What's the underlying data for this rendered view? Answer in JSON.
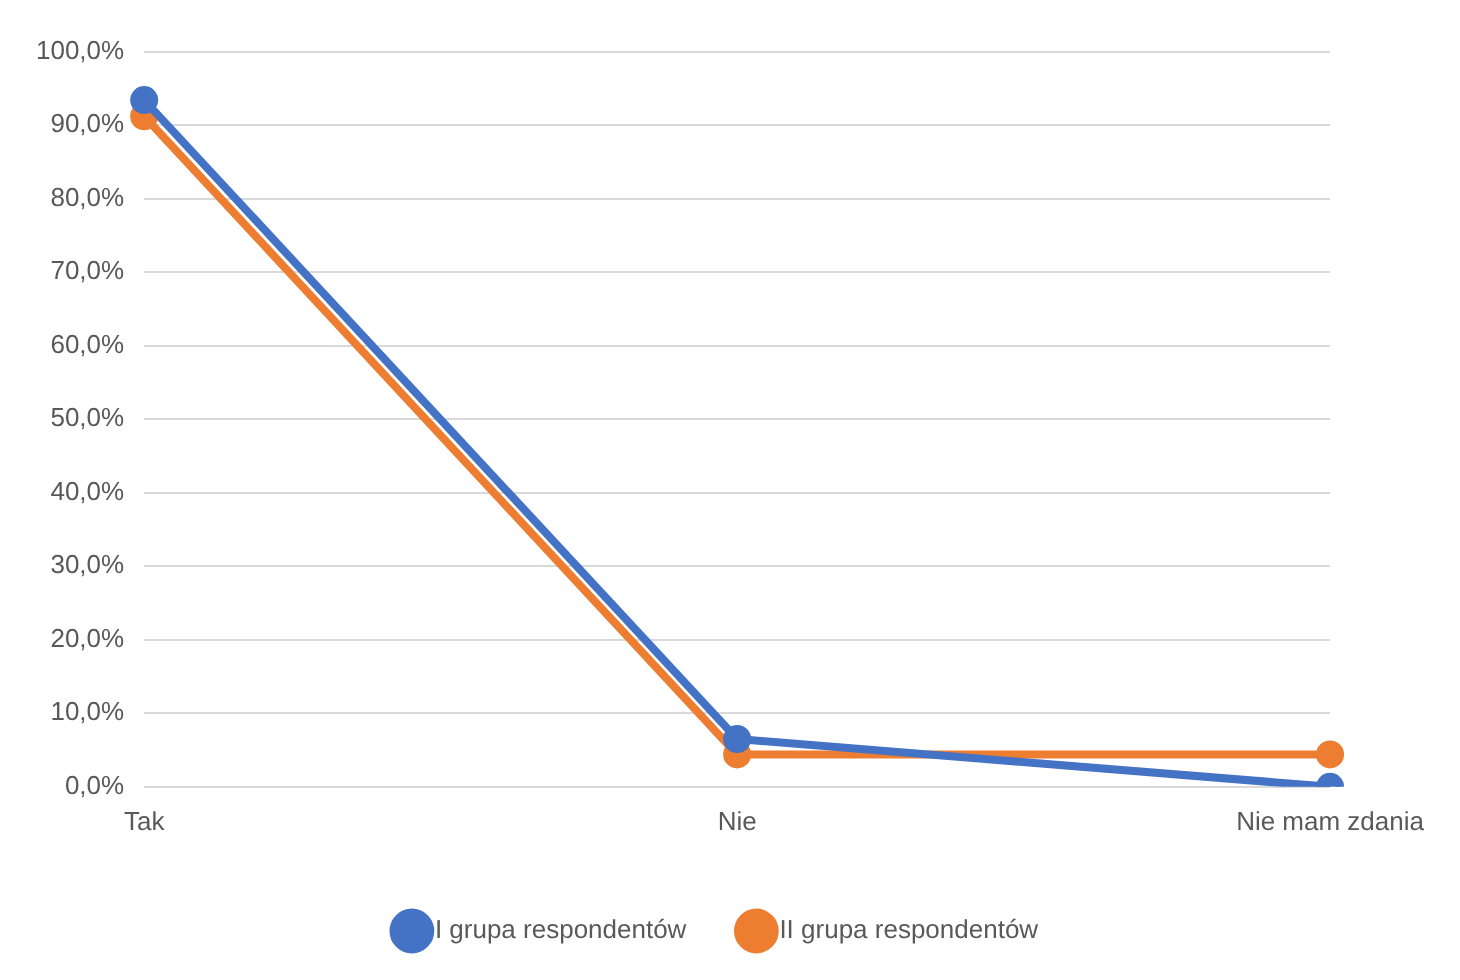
{
  "chart_data": {
    "type": "line",
    "categories": [
      "Tak",
      "Nie",
      "Nie mam zdania"
    ],
    "series": [
      {
        "name": "I grupa respondentów",
        "color": "#4472c4",
        "values": [
          93.4,
          6.5,
          0
        ]
      },
      {
        "name": "II grupa respondentów",
        "color": "#ed7d31",
        "values": [
          91.2,
          4.4,
          4.4
        ]
      }
    ],
    "ylim": [
      0,
      100
    ],
    "yticks": [
      {
        "value": 0,
        "label": "0,0%"
      },
      {
        "value": 10,
        "label": "10,0%"
      },
      {
        "value": 20,
        "label": "20,0%"
      },
      {
        "value": 30,
        "label": "30,0%"
      },
      {
        "value": 40,
        "label": "40,0%"
      },
      {
        "value": 50,
        "label": "50,0%"
      },
      {
        "value": 60,
        "label": "60,0%"
      },
      {
        "value": 70,
        "label": "70,0%"
      },
      {
        "value": 80,
        "label": "80,0%"
      },
      {
        "value": 90,
        "label": "90,0%"
      },
      {
        "value": 100,
        "label": "100,0%"
      }
    ],
    "grid": "y",
    "legend": "bottom",
    "marker": "circle",
    "line_style": "solid"
  }
}
